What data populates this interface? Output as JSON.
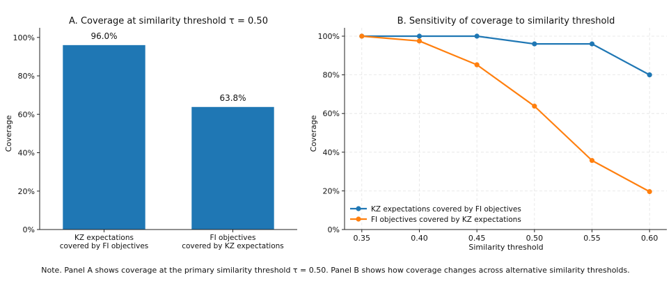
{
  "chart_data": [
    {
      "type": "bar",
      "title": "A. Coverage at similarity threshold τ = 0.50",
      "ylabel": "Coverage",
      "xlabel": "",
      "ylim": [
        0,
        1.05
      ],
      "yticks": [
        0,
        0.2,
        0.4,
        0.6,
        0.8,
        1.0
      ],
      "ytick_labels": [
        "0%",
        "20%",
        "40%",
        "60%",
        "80%",
        "100%"
      ],
      "categories": [
        [
          "KZ expectations",
          "covered by FI objectives"
        ],
        [
          "FI objectives",
          "covered by KZ expectations"
        ]
      ],
      "values": [
        0.96,
        0.638
      ],
      "data_labels": [
        "96.0%",
        "63.8%"
      ],
      "color": "#1f77b4",
      "grid": false
    },
    {
      "type": "line",
      "title": "B. Sensitivity of coverage to similarity threshold",
      "xlabel": "Similarity threshold",
      "ylabel": "Coverage",
      "xlim": [
        0.335,
        0.615
      ],
      "ylim": [
        0,
        1.0
      ],
      "x": [
        0.35,
        0.4,
        0.45,
        0.5,
        0.55,
        0.6
      ],
      "xtick_labels": [
        "0.35",
        "0.40",
        "0.45",
        "0.50",
        "0.55",
        "0.60"
      ],
      "yticks": [
        0,
        0.2,
        0.4,
        0.6,
        0.8,
        1.0
      ],
      "ytick_labels": [
        "0%",
        "20%",
        "40%",
        "60%",
        "80%",
        "100%"
      ],
      "series": [
        {
          "name": "KZ expectations covered by FI objectives",
          "color": "#1f77b4",
          "values": [
            1.0,
            1.0,
            1.0,
            0.96,
            0.96,
            0.8
          ]
        },
        {
          "name": "FI objectives covered by KZ expectations",
          "color": "#ff7f0e",
          "values": [
            1.0,
            0.975,
            0.852,
            0.638,
            0.357,
            0.196
          ]
        }
      ],
      "grid": true,
      "legend": "lower-left"
    }
  ],
  "note": "Note. Panel A shows coverage at the primary similarity threshold τ = 0.50. Panel B shows how coverage changes across alternative similarity thresholds."
}
